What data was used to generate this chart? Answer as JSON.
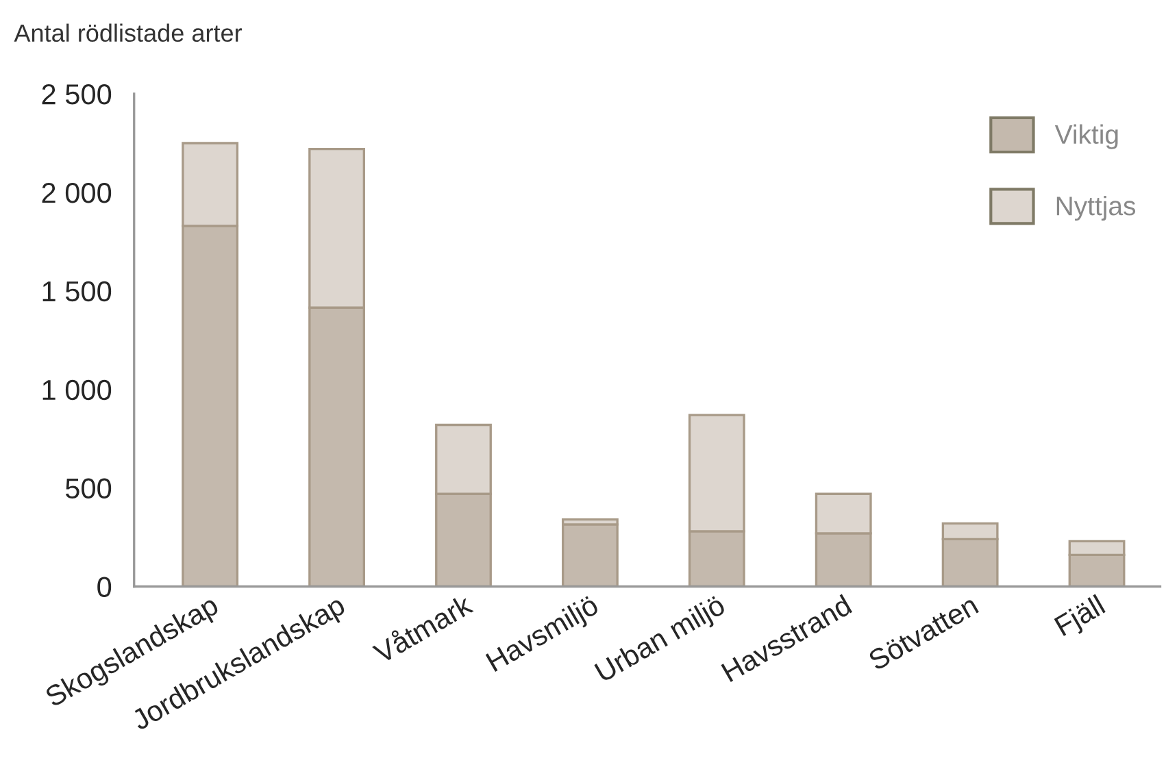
{
  "chart_data": {
    "type": "bar",
    "stacked": true,
    "ylabel": "Antal rödlistade arter",
    "categories": [
      "Skogslandskap",
      "Jordbrukslandskap",
      "Våtmark",
      "Havsmiljö",
      "Urban miljö",
      "Havsstrand",
      "Sötvatten",
      "Fjäll"
    ],
    "series": [
      {
        "name": "Viktig",
        "color": "#c4b9ad",
        "values": [
          1830,
          1415,
          470,
          315,
          280,
          270,
          240,
          160
        ]
      },
      {
        "name": "Nyttjas",
        "color": "#ddd6cf",
        "values": [
          420,
          805,
          350,
          25,
          590,
          200,
          80,
          70
        ]
      }
    ],
    "ylim": [
      0,
      2500
    ],
    "yticks": [
      {
        "value": 0,
        "label": "0"
      },
      {
        "value": 500,
        "label": "500"
      },
      {
        "value": 1000,
        "label": "1 000"
      },
      {
        "value": 1500,
        "label": "1 500"
      },
      {
        "value": 2000,
        "label": "2 000"
      },
      {
        "value": 2500,
        "label": "2 500"
      }
    ],
    "grid": false,
    "legend": "top right"
  }
}
